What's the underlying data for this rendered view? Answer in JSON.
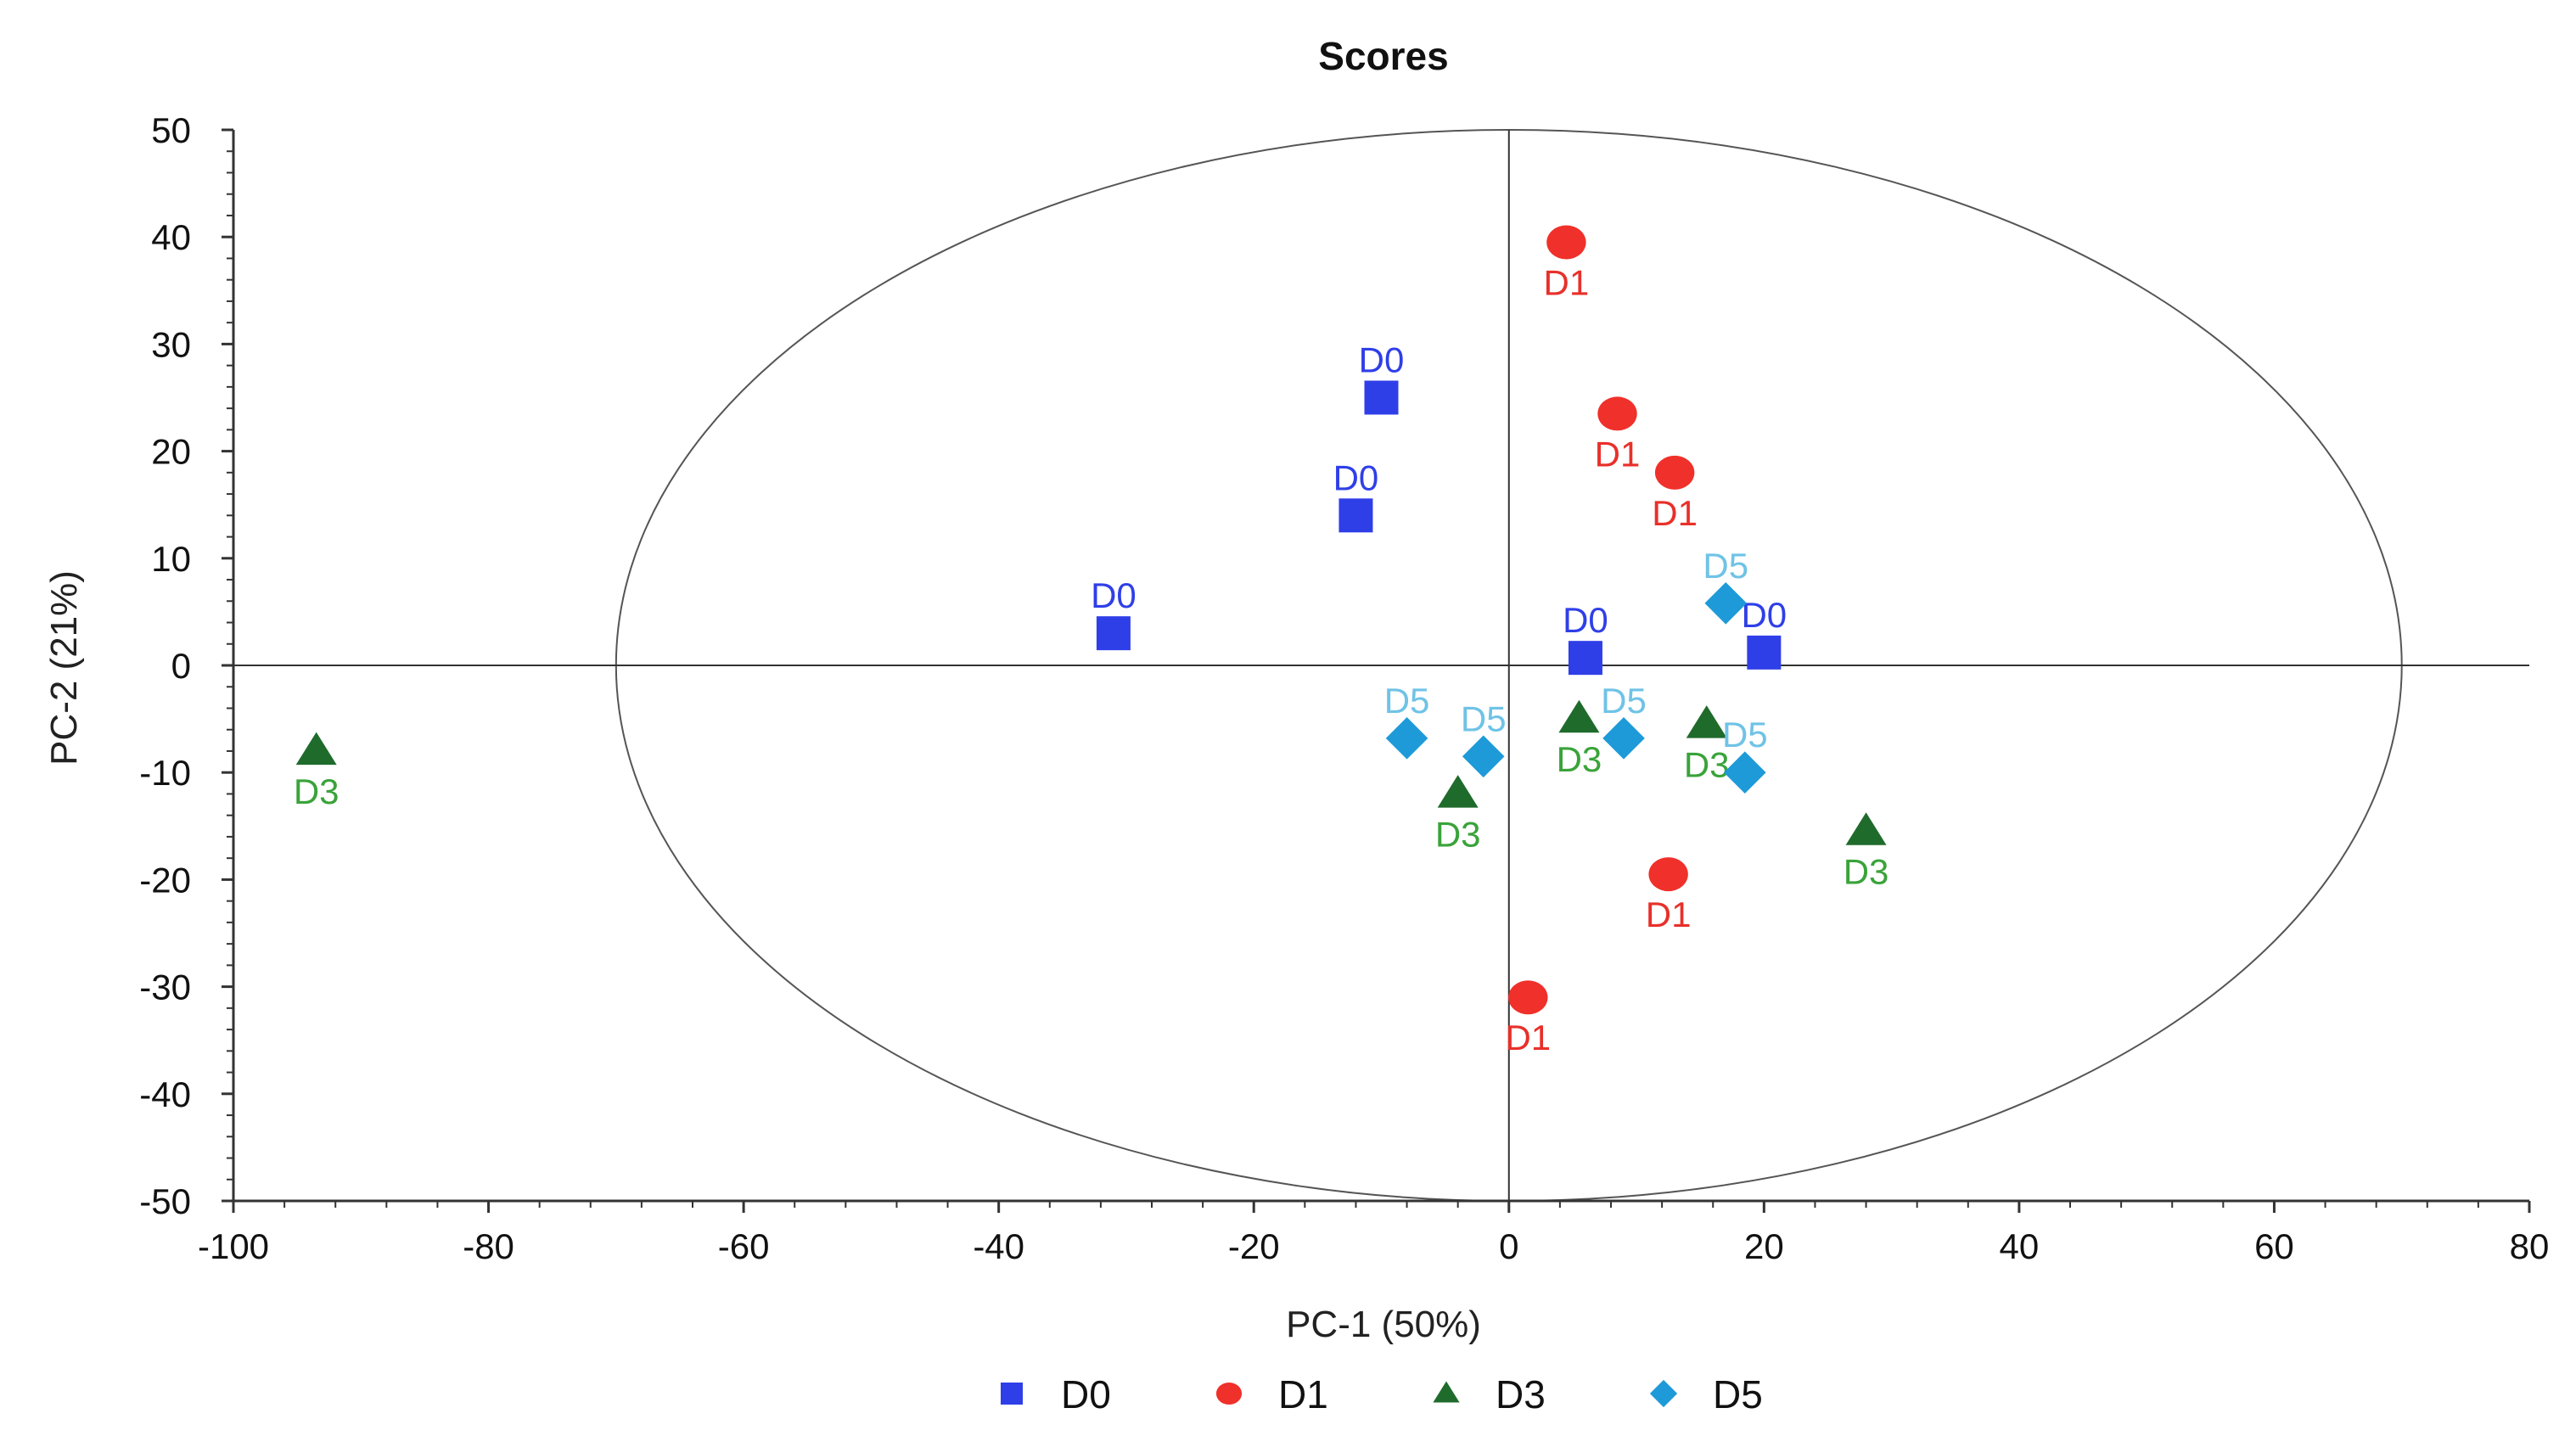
{
  "chart_data": {
    "type": "scatter",
    "title": "Scores",
    "xlabel": "PC-1 (50%)",
    "ylabel": "PC-2 (21%)",
    "xlim": [
      -100,
      80
    ],
    "ylim": [
      -50,
      50
    ],
    "xticks": [
      -100,
      -80,
      -60,
      -40,
      -20,
      0,
      20,
      40,
      60,
      80
    ],
    "yticks": [
      -50,
      -40,
      -30,
      -20,
      -10,
      0,
      10,
      20,
      30,
      40,
      50
    ],
    "ellipse": {
      "cx": 0,
      "cy": 0,
      "rx": 70,
      "ry": 50
    },
    "legend_position": "bottom",
    "series": [
      {
        "name": "D0",
        "marker": "square",
        "color": "#2f3fe8",
        "label_color": "#2f3fe8",
        "points": [
          {
            "x": -10,
            "y": 25,
            "label": "D0"
          },
          {
            "x": -12,
            "y": 14,
            "label": "D0"
          },
          {
            "x": -31,
            "y": 3,
            "label": "D0"
          },
          {
            "x": 6,
            "y": 0.7,
            "label": "D0"
          },
          {
            "x": 20,
            "y": 1.2,
            "label": "D0"
          }
        ]
      },
      {
        "name": "D1",
        "marker": "circle",
        "color": "#f0302a",
        "label_color": "#e8302a",
        "points": [
          {
            "x": 4.5,
            "y": 39.5,
            "label": "D1"
          },
          {
            "x": 8.5,
            "y": 23.5,
            "label": "D1"
          },
          {
            "x": 13,
            "y": 18,
            "label": "D1"
          },
          {
            "x": 12.5,
            "y": -19.5,
            "label": "D1"
          },
          {
            "x": 1.5,
            "y": -31,
            "label": "D1"
          }
        ]
      },
      {
        "name": "D3",
        "marker": "triangle",
        "color": "#1f6b2c",
        "label_color": "#3aa33a",
        "points": [
          {
            "x": -93.5,
            "y": -8,
            "label": "D3"
          },
          {
            "x": -4,
            "y": -12,
            "label": "D3"
          },
          {
            "x": 5.5,
            "y": -5,
            "label": "D3"
          },
          {
            "x": 15.5,
            "y": -5.5,
            "label": "D3"
          },
          {
            "x": 28,
            "y": -15.5,
            "label": "D3"
          }
        ]
      },
      {
        "name": "D5",
        "marker": "diamond",
        "color": "#1e9ad8",
        "label_color": "#6fc3e6",
        "points": [
          {
            "x": -8,
            "y": -6.8,
            "label": "D5"
          },
          {
            "x": -2,
            "y": -8.5,
            "label": "D5"
          },
          {
            "x": 9,
            "y": -6.8,
            "label": "D5"
          },
          {
            "x": 17,
            "y": 5.8,
            "label": "D5"
          },
          {
            "x": 18.5,
            "y": -10,
            "label": "D5"
          }
        ]
      }
    ]
  }
}
